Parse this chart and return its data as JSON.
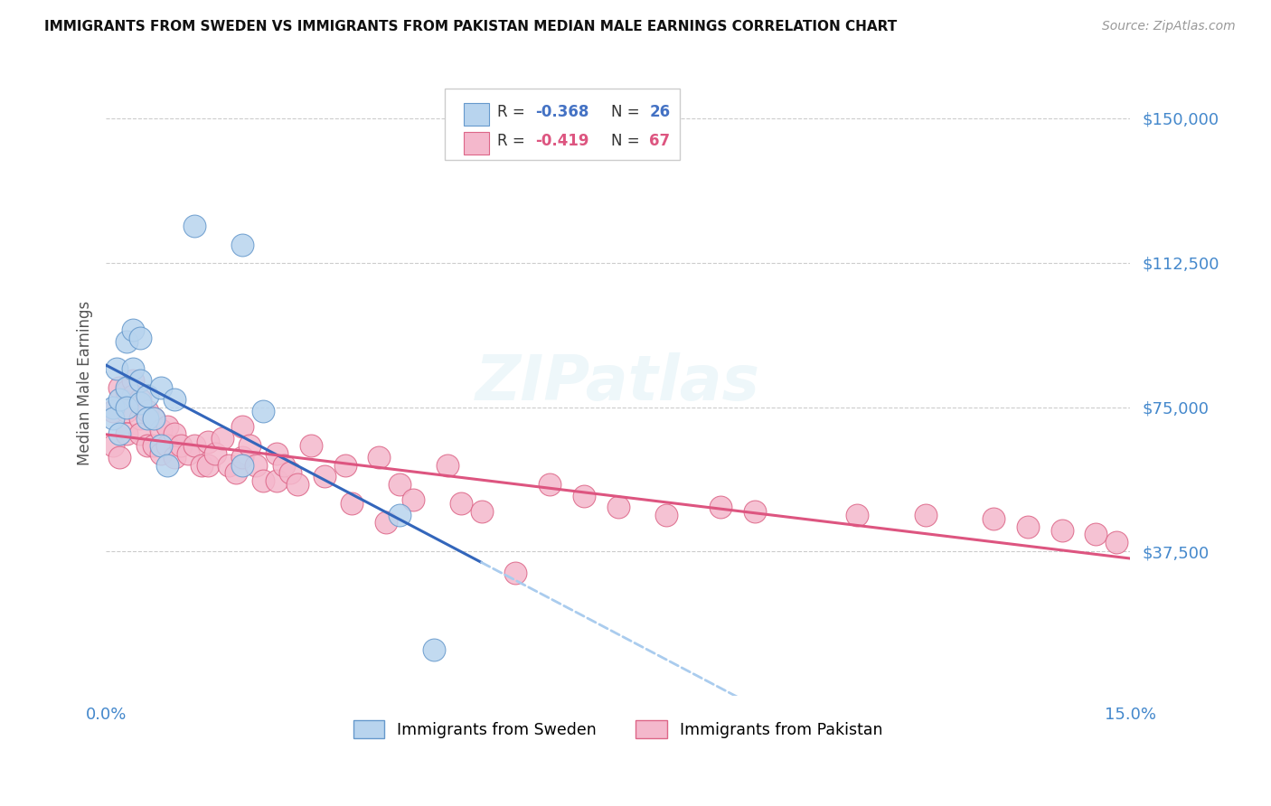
{
  "title": "IMMIGRANTS FROM SWEDEN VS IMMIGRANTS FROM PAKISTAN MEDIAN MALE EARNINGS CORRELATION CHART",
  "source": "Source: ZipAtlas.com",
  "ylabel": "Median Male Earnings",
  "xlim": [
    0.0,
    0.15
  ],
  "ylim": [
    0,
    162500
  ],
  "yticks": [
    37500,
    75000,
    112500,
    150000
  ],
  "ytick_labels": [
    "$37,500",
    "$75,000",
    "$112,500",
    "$150,000"
  ],
  "legend1_r": "-0.368",
  "legend1_n": "26",
  "legend2_r": "-0.419",
  "legend2_n": "67",
  "legend_label1": "Immigrants from Sweden",
  "legend_label2": "Immigrants from Pakistan",
  "blue_fill": "#b8d4ee",
  "blue_edge": "#6699cc",
  "pink_fill": "#f4b8cc",
  "pink_edge": "#dd6688",
  "line_blue": "#3366bb",
  "line_pink": "#dd5580",
  "line_dashed_color": "#aaccee",
  "sweden_x": [
    0.001,
    0.001,
    0.0015,
    0.002,
    0.002,
    0.003,
    0.003,
    0.003,
    0.004,
    0.004,
    0.005,
    0.005,
    0.005,
    0.006,
    0.006,
    0.007,
    0.008,
    0.008,
    0.009,
    0.01,
    0.013,
    0.02,
    0.02,
    0.023,
    0.043,
    0.048
  ],
  "sweden_y": [
    75000,
    72000,
    85000,
    68000,
    77000,
    80000,
    75000,
    92000,
    85000,
    95000,
    93000,
    82000,
    76000,
    78000,
    72000,
    72000,
    65000,
    80000,
    60000,
    77000,
    122000,
    117000,
    60000,
    74000,
    47000,
    12000
  ],
  "pakistan_x": [
    0.001,
    0.001,
    0.002,
    0.002,
    0.003,
    0.003,
    0.003,
    0.004,
    0.004,
    0.005,
    0.005,
    0.005,
    0.006,
    0.006,
    0.007,
    0.007,
    0.008,
    0.008,
    0.009,
    0.009,
    0.01,
    0.01,
    0.011,
    0.012,
    0.013,
    0.014,
    0.015,
    0.015,
    0.016,
    0.017,
    0.018,
    0.019,
    0.02,
    0.02,
    0.021,
    0.022,
    0.023,
    0.025,
    0.025,
    0.026,
    0.027,
    0.028,
    0.03,
    0.032,
    0.035,
    0.036,
    0.04,
    0.041,
    0.043,
    0.045,
    0.05,
    0.052,
    0.055,
    0.06,
    0.065,
    0.07,
    0.075,
    0.082,
    0.09,
    0.095,
    0.11,
    0.12,
    0.13,
    0.135,
    0.14,
    0.145,
    0.148
  ],
  "pakistan_y": [
    74000,
    65000,
    80000,
    62000,
    79000,
    74000,
    68000,
    82000,
    78000,
    77000,
    72000,
    68000,
    74000,
    65000,
    72000,
    65000,
    69000,
    63000,
    70000,
    65000,
    68000,
    62000,
    65000,
    63000,
    65000,
    60000,
    66000,
    60000,
    63000,
    67000,
    60000,
    58000,
    70000,
    62000,
    65000,
    60000,
    56000,
    63000,
    56000,
    60000,
    58000,
    55000,
    65000,
    57000,
    60000,
    50000,
    62000,
    45000,
    55000,
    51000,
    60000,
    50000,
    48000,
    32000,
    55000,
    52000,
    49000,
    47000,
    49000,
    48000,
    47000,
    47000,
    46000,
    44000,
    43000,
    42000,
    40000
  ]
}
